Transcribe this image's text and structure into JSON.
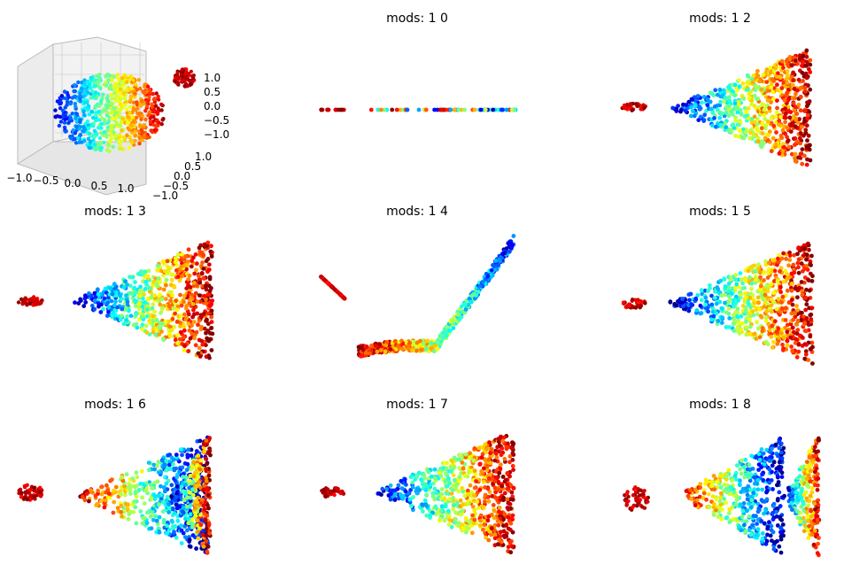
{
  "chart_data": [
    {
      "type": "scatter",
      "projection": "3d",
      "title": "",
      "x_ticks": [
        "−1.0",
        "−0.5",
        "0.0",
        "0.5",
        "1.0"
      ],
      "y_ticks": [
        "−1.0",
        "−0.5",
        "0.0",
        "0.5",
        "1.0"
      ],
      "z_ticks": [
        "1.0",
        "0.5",
        "0.0",
        "−0.5",
        "−1.0"
      ],
      "xlim": [
        -1.2,
        1.2
      ],
      "ylim": [
        -1.2,
        1.2
      ],
      "zlim": [
        -1.2,
        1.2
      ],
      "grid": true,
      "series": [
        {
          "shape": "ellipsoid",
          "center": [
            0.0,
            0.0,
            0.0
          ],
          "radius": [
            1.0,
            0.6,
            0.6
          ],
          "color_scale": "jet",
          "points": 900
        },
        {
          "shape": "blob",
          "center": [
            1.0,
            0.4,
            1.0
          ],
          "radius": [
            0.18,
            0.12,
            0.12
          ],
          "color_scale": "red",
          "points": 120
        }
      ]
    },
    {
      "type": "scatter",
      "title": "mods: 1 0",
      "shape": "line",
      "points": 900
    },
    {
      "type": "scatter",
      "title": "mods: 1 2",
      "shape": "cone",
      "points": 900
    },
    {
      "type": "scatter",
      "title": "mods: 1 3",
      "shape": "cone",
      "points": 900
    },
    {
      "type": "scatter",
      "title": "mods: 1 4",
      "shape": "parabola",
      "points": 900
    },
    {
      "type": "scatter",
      "title": "mods: 1 5",
      "shape": "cone",
      "points": 900
    },
    {
      "type": "scatter",
      "title": "mods: 1 6",
      "shape": "double-lobe",
      "points": 900
    },
    {
      "type": "scatter",
      "title": "mods: 1 7",
      "shape": "cone",
      "points": 900
    },
    {
      "type": "scatter",
      "title": "mods: 1 8",
      "shape": "double-lobe",
      "points": 900
    }
  ]
}
